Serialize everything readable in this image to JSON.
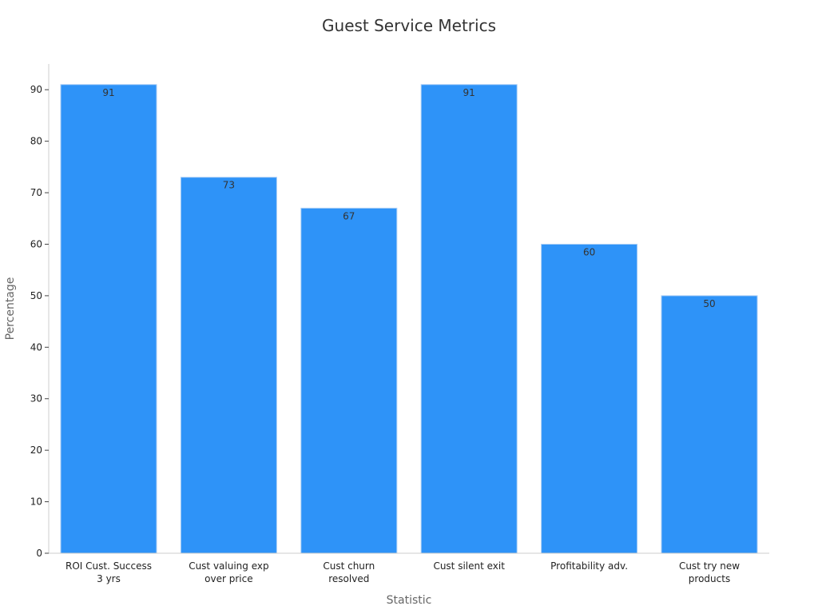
{
  "chart_data": {
    "type": "bar",
    "title": "Guest Service Metrics",
    "xlabel": "Statistic",
    "ylabel": "Percentage",
    "categories": [
      [
        "ROI Cust. Success",
        "3 yrs"
      ],
      [
        "Cust valuing exp",
        "over price"
      ],
      [
        "Cust churn",
        "resolved"
      ],
      [
        "Cust silent exit"
      ],
      [
        "Profitability adv."
      ],
      [
        "Cust try new",
        "products"
      ]
    ],
    "values": [
      91,
      73,
      67,
      91,
      60,
      50
    ],
    "ylim": [
      0,
      95
    ],
    "yticks": [
      0,
      10,
      20,
      30,
      40,
      50,
      60,
      70,
      80,
      90
    ],
    "bar_color": "#2e93f8",
    "bar_edge_color": "#a9cdf5",
    "grid": false,
    "data_labels": true
  }
}
